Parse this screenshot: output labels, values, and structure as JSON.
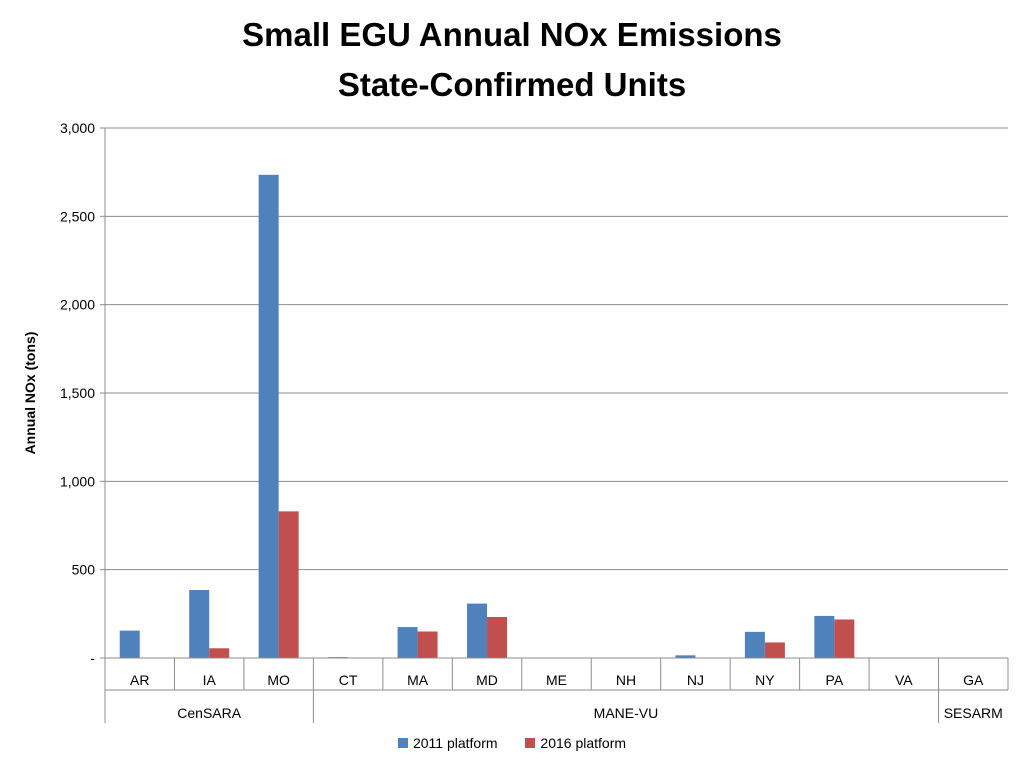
{
  "chart_data": {
    "type": "bar",
    "title": "Small EGU Annual NOx Emissions",
    "subtitle": "State-Confirmed Units",
    "ylabel": "Annual NOx (tons)",
    "ylim": [
      0,
      3000
    ],
    "yticks": [
      0,
      500,
      1000,
      1500,
      2000,
      2500,
      3000
    ],
    "ytick_labels": [
      "-",
      "500",
      "1,000",
      "1,500",
      "2,000",
      "2,500",
      "3,000"
    ],
    "grid": true,
    "legend_position": "bottom",
    "categories": [
      "AR",
      "IA",
      "MO",
      "CT",
      "MA",
      "MD",
      "ME",
      "NH",
      "NJ",
      "NY",
      "PA",
      "VA",
      "GA"
    ],
    "groups": [
      {
        "name": "CenSARA",
        "categories": [
          "AR",
          "IA",
          "MO"
        ]
      },
      {
        "name": "MANE-VU",
        "categories": [
          "CT",
          "MA",
          "MD",
          "ME",
          "NH",
          "NJ",
          "NY",
          "PA",
          "VA"
        ]
      },
      {
        "name": "SESARM",
        "categories": [
          "GA"
        ]
      }
    ],
    "series": [
      {
        "name": "2011 platform",
        "color": "#4f81bd",
        "values": [
          155,
          385,
          2735,
          5,
          175,
          308,
          0,
          0,
          15,
          148,
          238,
          0,
          0
        ]
      },
      {
        "name": "2016 platform",
        "color": "#c0504d",
        "values": [
          0,
          55,
          830,
          0,
          150,
          232,
          0,
          0,
          0,
          88,
          218,
          0,
          0
        ]
      }
    ]
  }
}
